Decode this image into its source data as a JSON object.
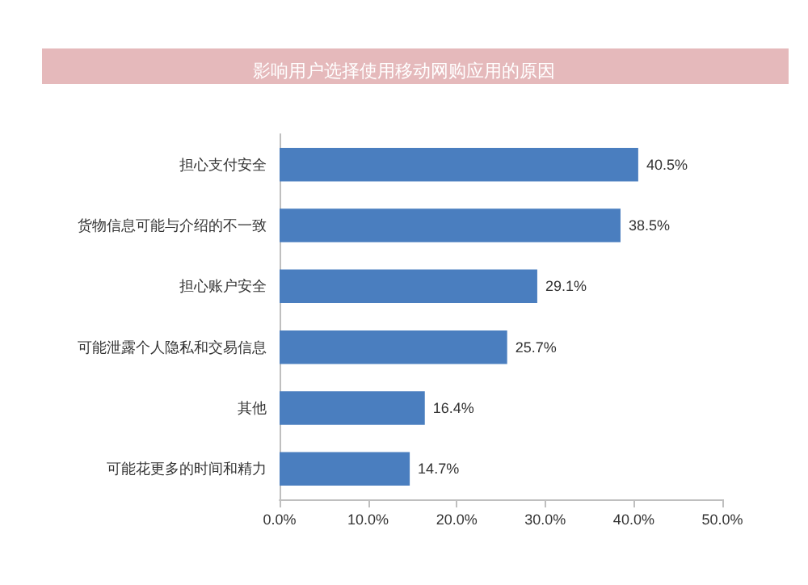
{
  "chart_data": {
    "type": "bar",
    "orientation": "horizontal",
    "title": "影响用户选择使用移动网购应用的原因",
    "categories": [
      "担心支付安全",
      "货物信息可能与介绍的不一致",
      "担心账户安全",
      "可能泄露个人隐私和交易信息",
      "其他",
      "可能花更多的时间和精力"
    ],
    "values": [
      40.5,
      38.5,
      29.1,
      25.7,
      16.4,
      14.7
    ],
    "value_labels": [
      "40.5%",
      "38.5%",
      "29.1%",
      "25.7%",
      "16.4%",
      "14.7%"
    ],
    "color": "#4a7ebf",
    "xlim": [
      0,
      50
    ],
    "xticks": [
      {
        "value": 0,
        "label": "0.0%"
      },
      {
        "value": 10,
        "label": "10.0%"
      },
      {
        "value": 20,
        "label": "20.0%"
      },
      {
        "value": 30,
        "label": "30.0%"
      },
      {
        "value": 40,
        "label": "40.0%"
      },
      {
        "value": 50,
        "label": "50.0%"
      }
    ],
    "grid": false
  }
}
